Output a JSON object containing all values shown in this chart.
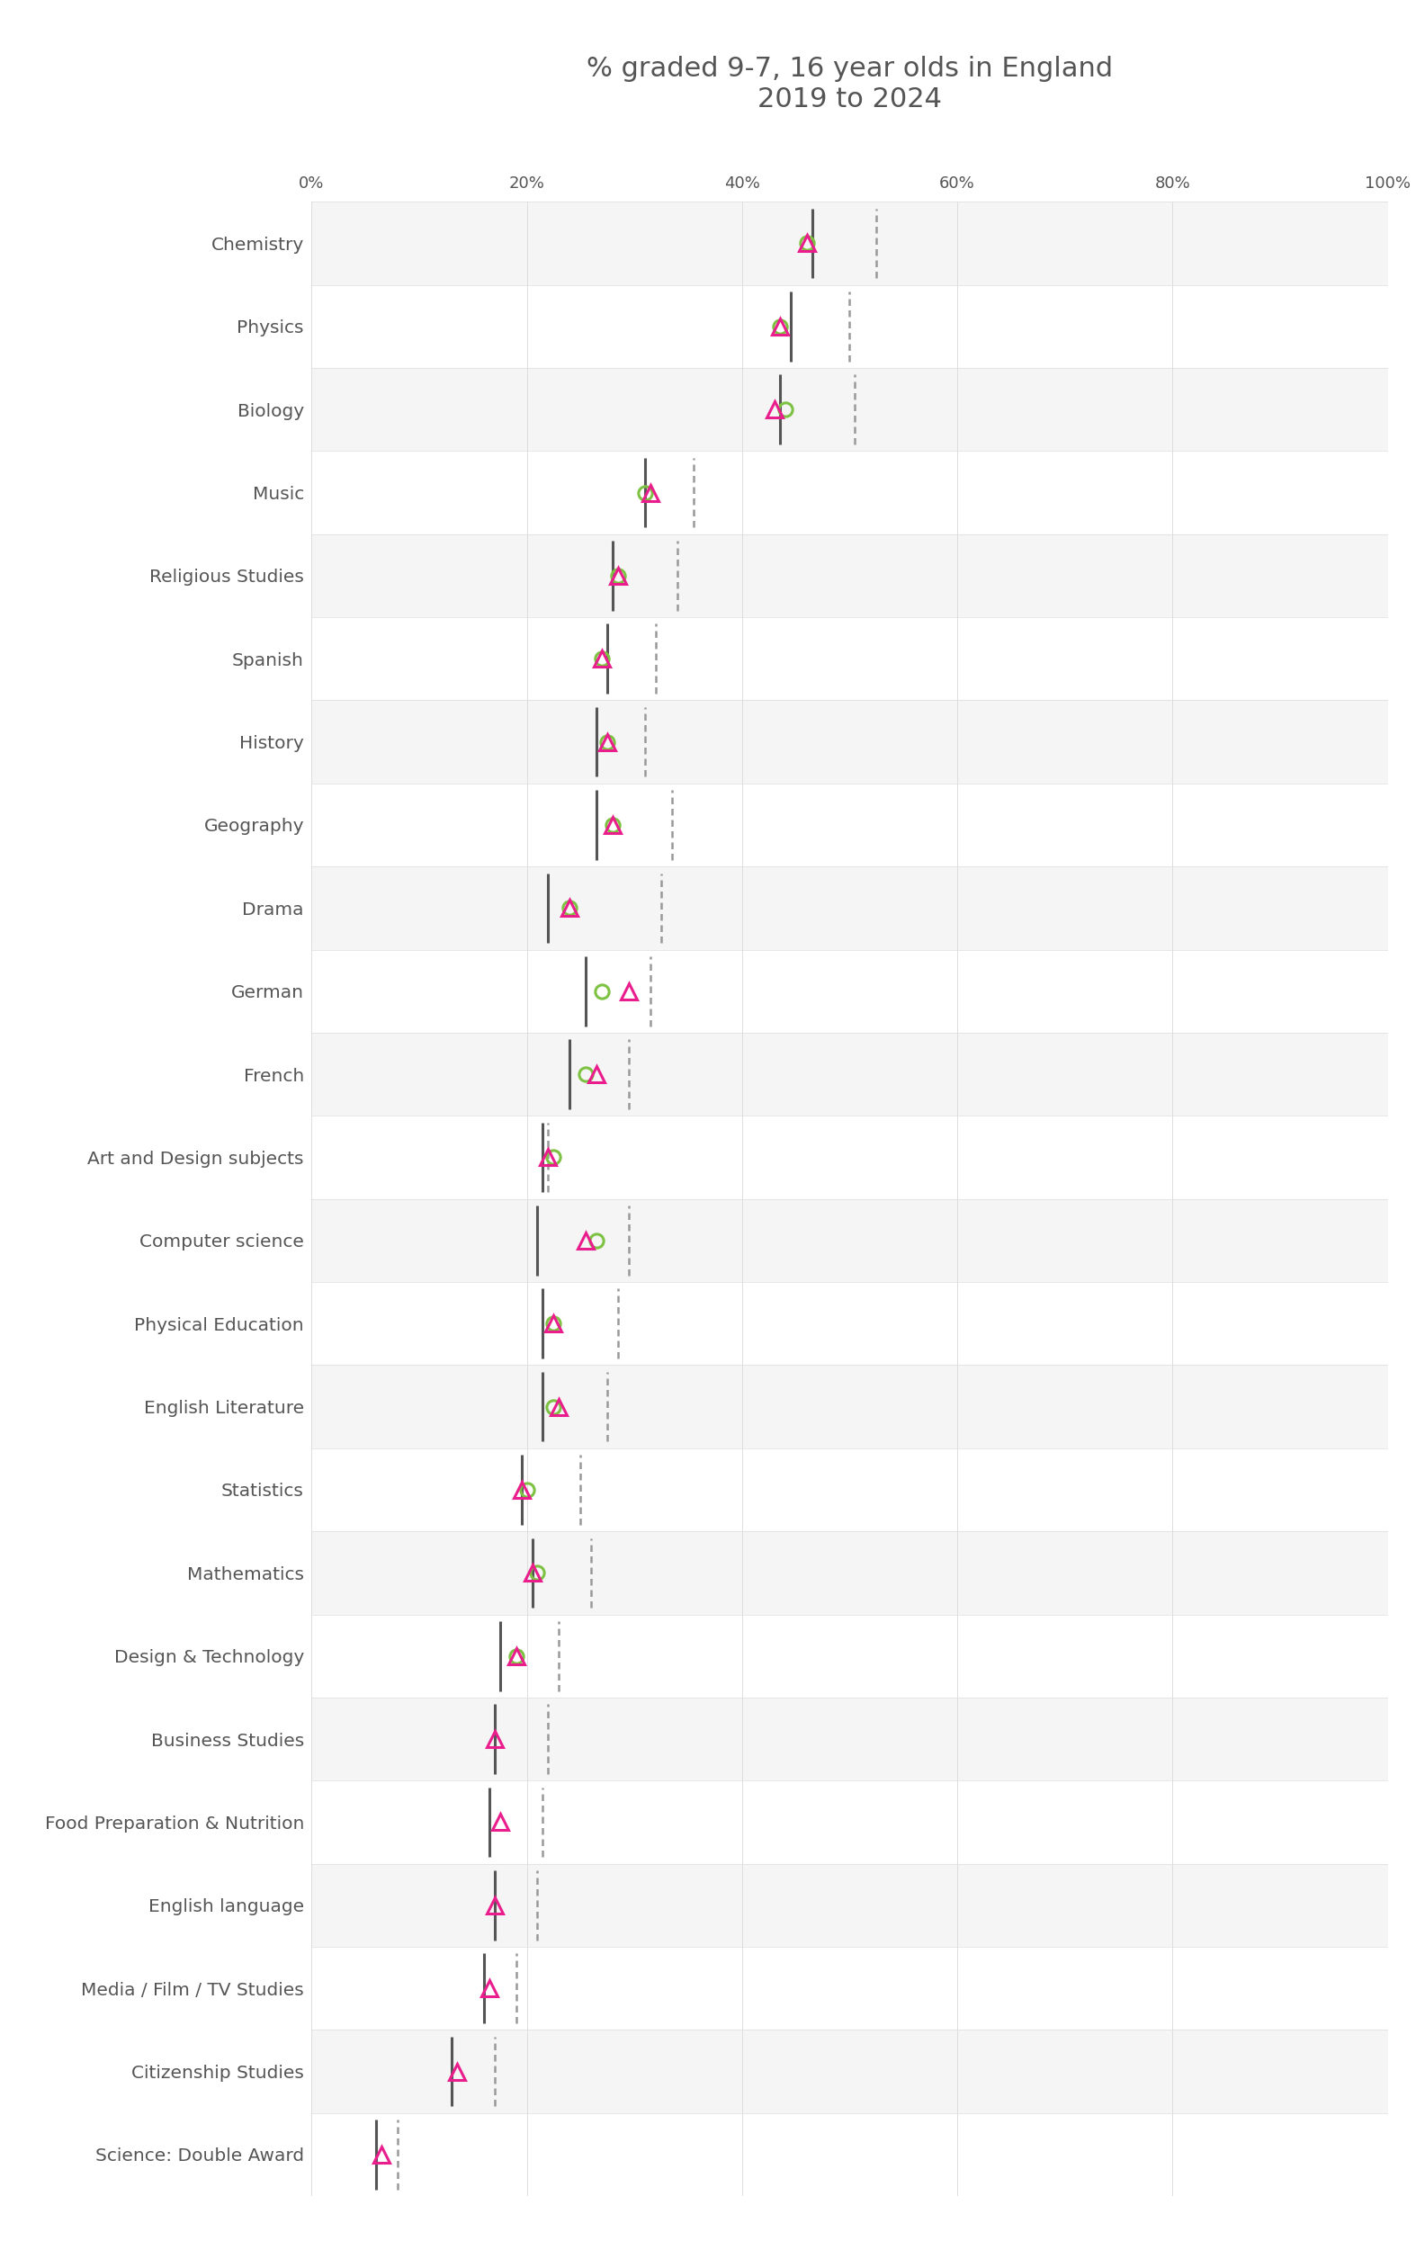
{
  "title": "% graded 9-7, 16 year olds in England\n2019 to 2024",
  "title_fontsize": 22,
  "background_color": "#ffffff",
  "text_color": "#555555",
  "categories": [
    "Chemistry",
    "Physics",
    "Biology",
    "Music",
    "Religious Studies",
    "Spanish",
    "History",
    "Geography",
    "Drama",
    "German",
    "French",
    "Art and Design subjects",
    "Computer science",
    "Physical Education",
    "English Literature",
    "Statistics",
    "Mathematics",
    "Design & Technology",
    "Business Studies",
    "Food Preparation & Nutrition",
    "English language",
    "Media / Film / TV Studies",
    "Citizenship Studies",
    "Science: Double Award"
  ],
  "data": {
    "2019": [
      46.5,
      44.5,
      43.5,
      31.0,
      28.0,
      27.5,
      26.5,
      26.5,
      22.0,
      25.5,
      24.0,
      21.5,
      21.0,
      21.5,
      21.5,
      19.5,
      20.5,
      17.5,
      17.0,
      16.5,
      17.0,
      16.0,
      13.0,
      6.0
    ],
    "2021": [
      52.5,
      50.0,
      50.5,
      35.5,
      34.0,
      32.0,
      31.0,
      33.5,
      32.5,
      31.5,
      29.5,
      22.0,
      29.5,
      28.5,
      27.5,
      25.0,
      26.0,
      23.0,
      22.0,
      21.5,
      21.0,
      19.0,
      17.0,
      8.0
    ],
    "2023": [
      46.0,
      43.5,
      44.0,
      31.0,
      28.5,
      27.0,
      27.5,
      28.0,
      24.0,
      27.0,
      25.5,
      22.5,
      26.5,
      22.5,
      22.5,
      20.0,
      21.0,
      19.0,
      null,
      null,
      null,
      null,
      null,
      null
    ],
    "2024": [
      46.0,
      43.5,
      43.0,
      31.5,
      28.5,
      27.0,
      27.5,
      28.0,
      24.0,
      29.5,
      26.5,
      22.0,
      25.5,
      22.5,
      23.0,
      19.5,
      20.5,
      19.0,
      17.0,
      17.5,
      17.0,
      16.5,
      13.5,
      6.5
    ]
  },
  "xlim": [
    0,
    100
  ],
  "xticks": [
    0,
    20,
    40,
    60,
    80,
    100
  ],
  "xticklabels": [
    "0%",
    "20%",
    "40%",
    "60%",
    "80%",
    "100%"
  ],
  "vline_2019_color": "#555555",
  "vline_2021_color": "#999999",
  "marker_2023_color": "#7DC242",
  "marker_2024_color": "#E91E8C",
  "row_even_color": "#f5f5f5",
  "row_odd_color": "#ffffff",
  "separator_color": "#dddddd"
}
